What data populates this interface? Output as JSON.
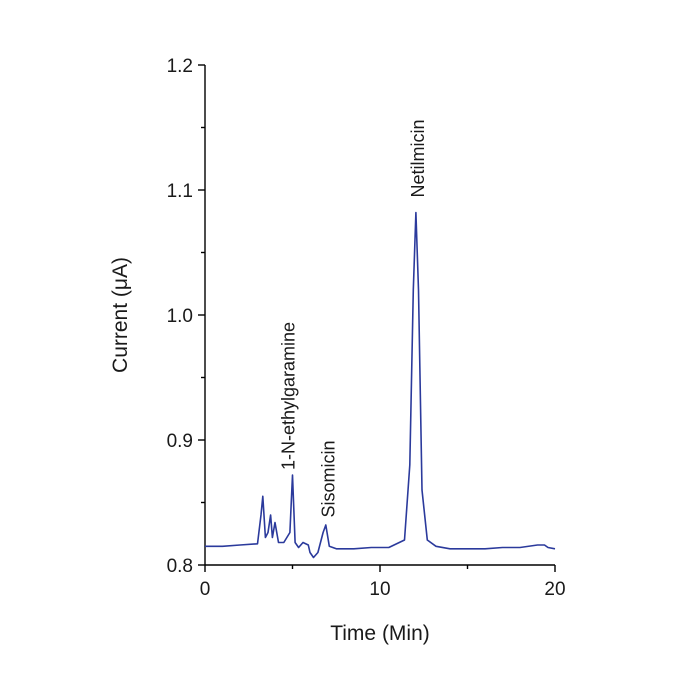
{
  "chart_data": {
    "type": "line",
    "title": "",
    "xlabel": "Time (Min)",
    "ylabel": "Current (μA)",
    "xlim": [
      0,
      20
    ],
    "ylim": [
      0.8,
      1.2
    ],
    "x_ticks": [
      0,
      10,
      20
    ],
    "x_tick_labels": [
      "0",
      "10",
      "20"
    ],
    "y_ticks": [
      0.8,
      0.9,
      1.0,
      1.1,
      1.2
    ],
    "y_tick_labels": [
      "0.8",
      "0.9",
      "1.0",
      "1.1",
      "1.2"
    ],
    "grid": false,
    "line_color": "#2b3a9c",
    "series": [
      {
        "x": [
          0,
          1,
          2,
          3.0,
          3.2,
          3.3,
          3.45,
          3.6,
          3.75,
          3.85,
          4.0,
          4.2,
          4.5,
          4.85,
          5.0,
          5.15,
          5.35,
          5.6,
          5.9,
          6.0,
          6.2,
          6.45,
          6.6,
          6.75,
          6.9,
          7.1,
          7.5,
          8.5,
          9.5,
          10.5,
          11.4,
          11.7,
          11.9,
          12.05,
          12.2,
          12.4,
          12.7,
          13.2,
          14.0,
          15.0,
          16.0,
          17.0,
          18.0,
          19.0,
          19.4,
          19.6,
          20.0
        ],
        "y": [
          0.815,
          0.815,
          0.816,
          0.817,
          0.84,
          0.855,
          0.822,
          0.826,
          0.84,
          0.822,
          0.834,
          0.818,
          0.818,
          0.826,
          0.872,
          0.818,
          0.814,
          0.818,
          0.816,
          0.81,
          0.806,
          0.81,
          0.818,
          0.826,
          0.832,
          0.815,
          0.813,
          0.813,
          0.814,
          0.814,
          0.82,
          0.88,
          1.02,
          1.082,
          1.02,
          0.86,
          0.82,
          0.815,
          0.813,
          0.813,
          0.813,
          0.814,
          0.814,
          0.816,
          0.816,
          0.814,
          0.813
        ]
      }
    ],
    "annotations": [
      {
        "text": "1-N-ethylgaramine",
        "x": 5.1,
        "y": 0.876
      },
      {
        "text": "Sisomicin",
        "x": 7.4,
        "y": 0.838
      },
      {
        "text": "Netilmicin",
        "x": 12.5,
        "y": 1.094
      }
    ]
  }
}
